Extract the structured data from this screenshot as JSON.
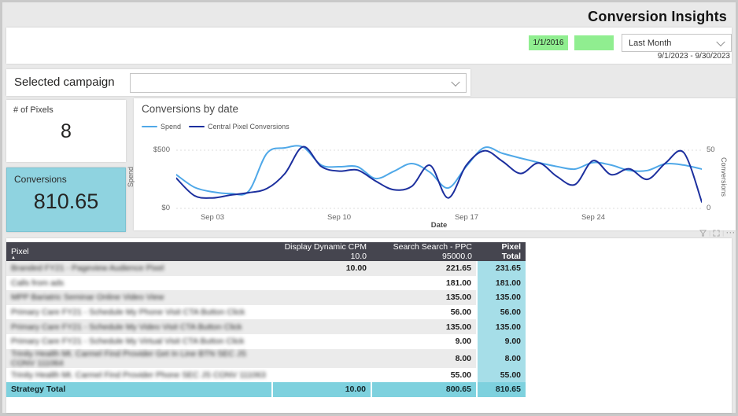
{
  "header": {
    "title": "Conversion Insights"
  },
  "filters": {
    "accent_green": "#90ee90",
    "date_input_1": {
      "value": "1/1/2016"
    },
    "date_input_2": {
      "value": ""
    },
    "period_dropdown": {
      "value": "Last Month"
    },
    "date_range": "9/1/2023 - 9/30/2023"
  },
  "campaign": {
    "label": "Selected campaign",
    "value": ""
  },
  "cards": {
    "pixels": {
      "label": "# of Pixels",
      "value": "8"
    },
    "conversions": {
      "label": "Conversions",
      "value": "810.65",
      "bg": "#8fd3e0"
    }
  },
  "chart_data": {
    "type": "line",
    "title": "Conversions by date",
    "xlabel": "Date",
    "ylabel_left": "Spend",
    "ylabel_right": "Conversions",
    "y_left_range": [
      0,
      500
    ],
    "y_right_range": [
      0,
      50
    ],
    "y_left_ticks": [
      "$500",
      "$0"
    ],
    "y_right_ticks": [
      "50",
      "0"
    ],
    "x_ticks": [
      "Sep 03",
      "Sep 10",
      "Sep 17",
      "Sep 24"
    ],
    "grid": "dashed horizontal",
    "legend_position": "top-left",
    "x_dates": [
      "Sep 01",
      "Sep 02",
      "Sep 03",
      "Sep 04",
      "Sep 05",
      "Sep 06",
      "Sep 07",
      "Sep 08",
      "Sep 09",
      "Sep 10",
      "Sep 11",
      "Sep 12",
      "Sep 13",
      "Sep 14",
      "Sep 15",
      "Sep 16",
      "Sep 17",
      "Sep 18",
      "Sep 19",
      "Sep 20",
      "Sep 21",
      "Sep 22",
      "Sep 23",
      "Sep 24",
      "Sep 25",
      "Sep 26",
      "Sep 27",
      "Sep 28",
      "Sep 29",
      "Sep 30"
    ],
    "series": [
      {
        "name": "Spend",
        "axis": "left",
        "color": "#4fa8e8",
        "values": [
          290,
          182,
          142,
          128,
          148,
          473,
          520,
          527,
          372,
          358,
          358,
          257,
          318,
          385,
          310,
          175,
          360,
          522,
          473,
          432,
          394,
          360,
          338,
          394,
          372,
          326,
          326,
          383,
          372,
          338
        ]
      },
      {
        "name": "Central Pixel Conversions",
        "axis": "right",
        "color": "#1c2f9e",
        "values": [
          26,
          11,
          9,
          11.5,
          13.5,
          17,
          30,
          53,
          36,
          32,
          33,
          23.5,
          16,
          19,
          37,
          9,
          37,
          49.5,
          40.5,
          30,
          39,
          27.5,
          20.5,
          41,
          29,
          34,
          25,
          39,
          48,
          5.5
        ]
      }
    ]
  },
  "visual_toolbar": {
    "icons": [
      "filter-icon",
      "focus-mode-icon",
      "more-options-icon"
    ]
  },
  "table": {
    "columns": [
      "Pixel",
      "Display Dynamic CPM 10.0",
      "Search Search - PPC 95000.0",
      "Pixel Total"
    ],
    "sort": {
      "column": "Pixel",
      "direction": "asc"
    },
    "rows": [
      {
        "pixel": "Branded FY21 - Pageview Audience Pixel",
        "display": "10.00",
        "search": "221.65",
        "total": "231.65"
      },
      {
        "pixel": "Calls from ads",
        "display": "",
        "search": "181.00",
        "total": "181.00"
      },
      {
        "pixel": "MPP Bariatric Seminar Online Video View",
        "display": "",
        "search": "135.00",
        "total": "135.00"
      },
      {
        "pixel": "Primary Care FY21 - Schedule My Phone Visit CTA Button Click",
        "display": "",
        "search": "56.00",
        "total": "56.00"
      },
      {
        "pixel": "Primary Care FY21 - Schedule My Video Visit CTA Button Click",
        "display": "",
        "search": "135.00",
        "total": "135.00"
      },
      {
        "pixel": "Primary Care FY21 - Schedule My Virtual Visit CTA Button Click",
        "display": "",
        "search": "9.00",
        "total": "9.00"
      },
      {
        "pixel": "Trinity Health Mt. Carmel Find Provider Get In Line BTN SEC JS CONV 111064",
        "display": "",
        "search": "8.00",
        "total": "8.00"
      },
      {
        "pixel": "Trinity Health Mt. Carmel Find Provider Phone SEC JS CONV 111063",
        "display": "",
        "search": "55.00",
        "total": "55.00"
      }
    ],
    "total_row": {
      "pixel": "Strategy Total",
      "display": "10.00",
      "search": "800.65",
      "total": "810.65"
    },
    "colors": {
      "header_bg": "#45454f",
      "total_column_bg": "#a6dee8",
      "total_row_bg": "#7ed1de"
    }
  }
}
